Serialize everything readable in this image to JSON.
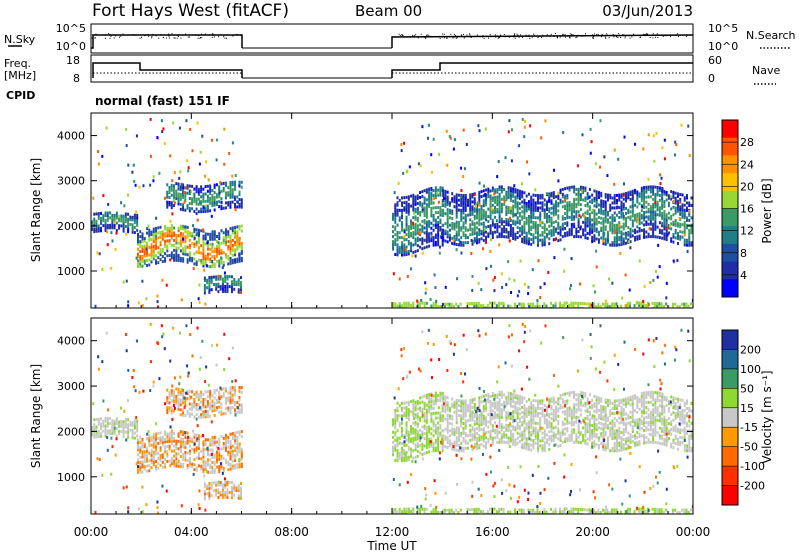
{
  "header": {
    "station": "Fort Hays West (fitACF)",
    "beam": "Beam 00",
    "date": "03/Jun/2013"
  },
  "panels": {
    "nsky": {
      "label": "N.Sky",
      "ticks": [
        "10^5",
        "10^0"
      ],
      "right_ticks": [
        "10^5",
        "10^0"
      ],
      "right_label": "N.Search"
    },
    "freq": {
      "label_line1": "Freq.",
      "label_line2": "[MHz]",
      "ticks": [
        "18",
        "8"
      ],
      "right_ticks": [
        "60",
        "0"
      ],
      "right_label": "Nave"
    },
    "cpid": {
      "label": "CPID",
      "mode": "normal (fast) 151 IF"
    }
  },
  "axes": {
    "ylabel": "Slant Range [km]",
    "yticks": [
      "4000",
      "3000",
      "2000",
      "1000"
    ],
    "xlabel": "Time UT",
    "xticks": [
      "00:00",
      "04:00",
      "08:00",
      "12:00",
      "16:00",
      "20:00",
      "00:00"
    ]
  },
  "colorbars": {
    "power": {
      "label": "Power [dB]",
      "ticks": [
        "28",
        "24",
        "20",
        "16",
        "12",
        "8",
        "4"
      ],
      "colors": [
        "#ff0000",
        "#ff5500",
        "#ff9000",
        "#ffc000",
        "#98d834",
        "#3c9a64",
        "#207e86",
        "#1f4fa4",
        "#1f2ea6",
        "#0000ff"
      ]
    },
    "velocity": {
      "label": "Velocity [m s⁻¹]",
      "ticks": [
        "200",
        "100",
        "50",
        "15",
        "-15",
        "-50",
        "-100",
        "-200"
      ],
      "colors": [
        "#2030a0",
        "#206898",
        "#3c9a64",
        "#8ed834",
        "#c8c8c8",
        "#ff9b00",
        "#ff6a00",
        "#ff3000",
        "#ff0000"
      ]
    }
  },
  "chart_data": {
    "type": "heatmap",
    "title": "Fort Hays West (fitACF)",
    "xlabel": "Time UT",
    "ylabel": "Slant Range [km]",
    "xlim": [
      "00:00",
      "24:00"
    ],
    "ylim": [
      180,
      4500
    ],
    "data_gaps": [
      [
        "06:00",
        "12:00"
      ]
    ],
    "backscatter_bands": [
      {
        "from": "00:00",
        "to": "01:50",
        "range_km": [
          1900,
          2300
        ]
      },
      {
        "from": "01:50",
        "to": "06:00",
        "range_km": [
          1200,
          2000
        ]
      },
      {
        "from": "03:00",
        "to": "06:00",
        "range_km": [
          2400,
          3000
        ]
      },
      {
        "from": "04:30",
        "to": "06:00",
        "range_km": [
          550,
          900
        ]
      },
      {
        "from": "12:00",
        "to": "14:00",
        "range_km": [
          1500,
          2800
        ]
      },
      {
        "from": "14:00",
        "to": "24:00",
        "range_km": [
          1700,
          2800
        ]
      },
      {
        "from": "12:00",
        "to": "24:00",
        "range_km": [
          200,
          350
        ]
      }
    ]
  }
}
